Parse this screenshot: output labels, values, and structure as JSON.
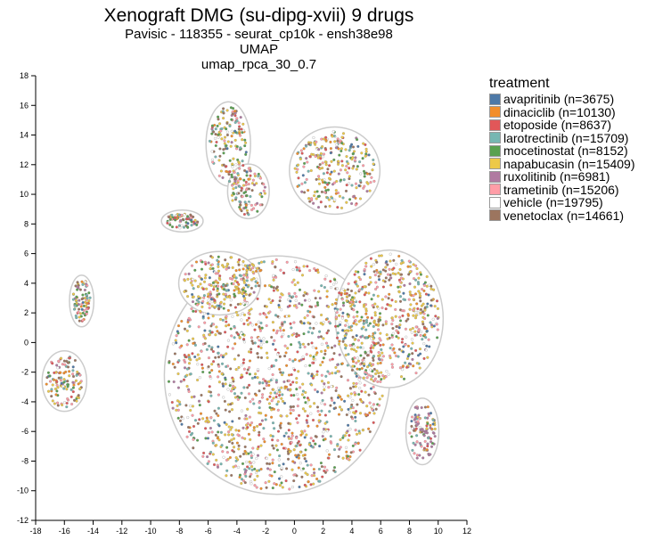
{
  "title": "Xenograft DMG (su-dipg-xvii) 9 drugs",
  "subtitles": [
    "Pavisic - 118355 - seurat_cp10k - ensh38e98",
    "UMAP",
    "umap_rpca_30_0.7"
  ],
  "chart_data": {
    "type": "scatter",
    "title": "Xenograft DMG (su-dipg-xvii) 9 drugs",
    "xlabel": "",
    "ylabel": "",
    "xlim": [
      -18,
      12
    ],
    "ylim": [
      -12,
      18
    ],
    "x_ticks": [
      -18,
      -16,
      -14,
      -12,
      -10,
      -8,
      -6,
      -4,
      -2,
      0,
      2,
      4,
      6,
      8,
      10,
      12
    ],
    "y_ticks": [
      -12,
      -10,
      -8,
      -6,
      -4,
      -2,
      0,
      2,
      4,
      6,
      8,
      10,
      12,
      14,
      16,
      18
    ],
    "legend_title": "treatment",
    "legend_position": "right",
    "series": [
      {
        "name": "avapritinib (n=3675)",
        "color": "#4e79a7"
      },
      {
        "name": "dinaciclib (n=10130)",
        "color": "#f28e2b"
      },
      {
        "name": "etoposide (n=8637)",
        "color": "#e15759"
      },
      {
        "name": "larotrectinib (n=15709)",
        "color": "#76b7b2"
      },
      {
        "name": "mocetinostat (n=8152)",
        "color": "#59a14f"
      },
      {
        "name": "napabucasin (n=15409)",
        "color": "#edc948"
      },
      {
        "name": "ruxolitinib (n=6981)",
        "color": "#b07aa1"
      },
      {
        "name": "trametinib (n=15206)",
        "color": "#ff9da7"
      },
      {
        "name": "vehicle (n=19795)",
        "color": "#ffffff"
      },
      {
        "name": "venetoclax (n=14661)",
        "color": "#9c755f"
      }
    ],
    "clusters": [
      {
        "cx": -1.2,
        "cy": -2.2,
        "rx": 7.6,
        "ry": 7.8,
        "mix": [
          0.04,
          0.08,
          0.08,
          0.12,
          0.06,
          0.22,
          0.04,
          0.18,
          0.08,
          0.1
        ]
      },
      {
        "cx": 6.6,
        "cy": 1.6,
        "rx": 3.5,
        "ry": 4.4,
        "mix": [
          0.04,
          0.08,
          0.06,
          0.1,
          0.05,
          0.32,
          0.04,
          0.16,
          0.05,
          0.1
        ]
      },
      {
        "cx": -5.2,
        "cy": 4.0,
        "rx": 2.6,
        "ry": 1.9,
        "mix": [
          0.02,
          0.06,
          0.04,
          0.08,
          0.05,
          0.52,
          0.03,
          0.1,
          0.04,
          0.06
        ]
      },
      {
        "cx": 2.8,
        "cy": 11.6,
        "rx": 2.9,
        "ry": 2.7,
        "mix": [
          0.03,
          0.07,
          0.06,
          0.1,
          0.08,
          0.34,
          0.05,
          0.14,
          0.05,
          0.08
        ]
      },
      {
        "cx": -4.6,
        "cy": 13.4,
        "rx": 1.3,
        "ry": 2.6,
        "mix": [
          0.04,
          0.08,
          0.08,
          0.1,
          0.14,
          0.18,
          0.06,
          0.12,
          0.05,
          0.15
        ]
      },
      {
        "cx": -3.2,
        "cy": 10.2,
        "rx": 1.2,
        "ry": 1.6,
        "mix": [
          0.04,
          0.08,
          0.08,
          0.1,
          0.14,
          0.18,
          0.06,
          0.12,
          0.05,
          0.15
        ]
      },
      {
        "cx": -16.0,
        "cy": -2.6,
        "rx": 1.3,
        "ry": 1.8,
        "mix": [
          0.04,
          0.1,
          0.08,
          0.12,
          0.12,
          0.18,
          0.06,
          0.12,
          0.04,
          0.14
        ]
      },
      {
        "cx": -14.8,
        "cy": 2.8,
        "rx": 0.6,
        "ry": 1.5,
        "mix": [
          0.04,
          0.1,
          0.08,
          0.12,
          0.12,
          0.18,
          0.06,
          0.12,
          0.04,
          0.14
        ]
      },
      {
        "cx": 8.9,
        "cy": -6.0,
        "rx": 0.9,
        "ry": 2.0,
        "mix": [
          0.03,
          0.04,
          0.05,
          0.05,
          0.03,
          0.08,
          0.48,
          0.1,
          0.05,
          0.09
        ]
      },
      {
        "cx": -7.8,
        "cy": 8.2,
        "rx": 1.2,
        "ry": 0.5,
        "mix": [
          0.04,
          0.06,
          0.1,
          0.1,
          0.2,
          0.1,
          0.06,
          0.18,
          0.06,
          0.1
        ]
      }
    ]
  }
}
